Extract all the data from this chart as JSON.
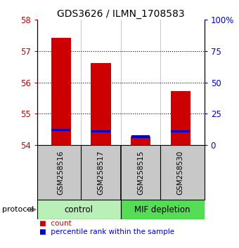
{
  "title": "GDS3626 / ILMN_1708583",
  "samples": [
    "GSM258516",
    "GSM258517",
    "GSM258515",
    "GSM258530"
  ],
  "count_values": [
    57.42,
    56.63,
    54.27,
    55.73
  ],
  "percentile_values": [
    54.48,
    54.43,
    54.27,
    54.43
  ],
  "bar_bottom": 54.0,
  "ylim_left": [
    54,
    58
  ],
  "ylim_right": [
    0,
    100
  ],
  "yticks_left": [
    54,
    55,
    56,
    57,
    58
  ],
  "yticks_right": [
    0,
    25,
    50,
    75,
    100
  ],
  "ytick_labels_right": [
    "0",
    "25",
    "50",
    "75",
    "100%"
  ],
  "groups": [
    {
      "name": "control",
      "color": "#b8f0b8"
    },
    {
      "name": "MIF depletion",
      "color": "#55dd55"
    }
  ],
  "bar_color_red": "#cc0000",
  "bar_color_blue": "#0000cc",
  "bar_width": 0.5,
  "blue_bar_height": 0.07,
  "axis_label_color_left": "#cc0000",
  "axis_label_color_right": "#0000cc",
  "bg_plot": "#ffffff",
  "bg_sample_area": "#c8c8c8",
  "protocol_label": "protocol"
}
